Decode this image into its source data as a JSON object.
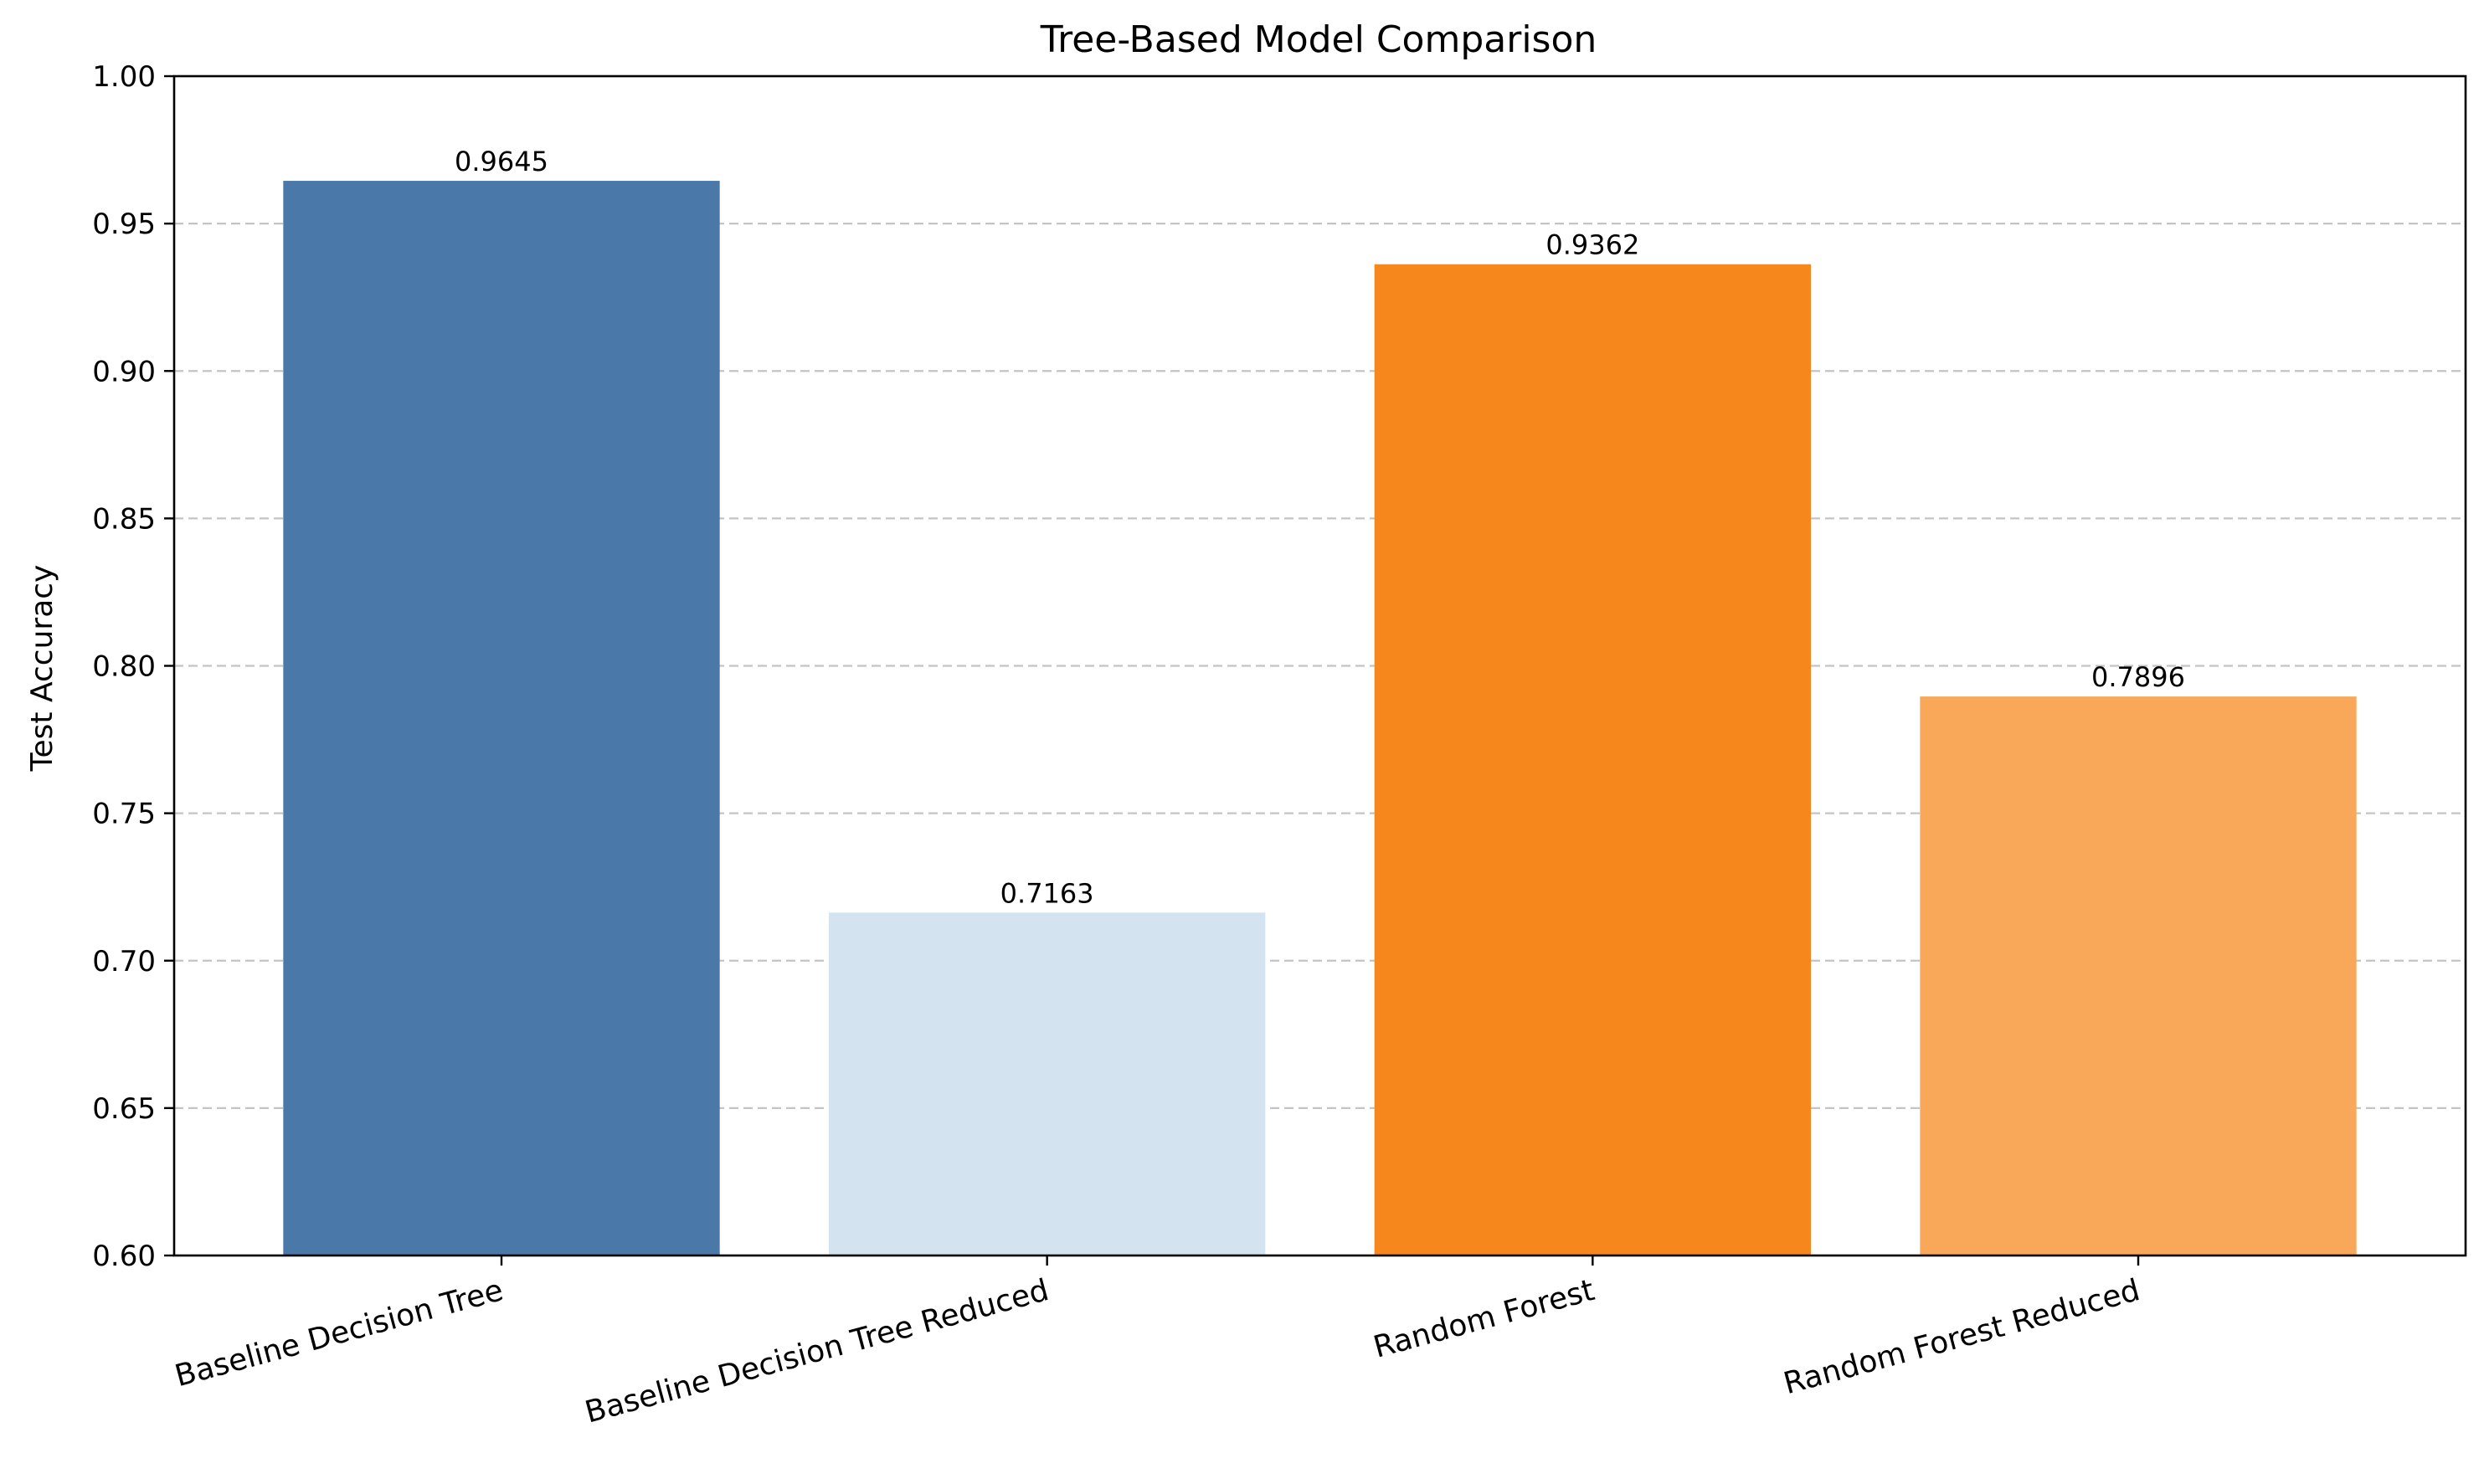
{
  "chart_data": {
    "type": "bar",
    "title": "Tree-Based Model Comparison",
    "xlabel": "",
    "ylabel": "Test Accuracy",
    "ylim": [
      0.6,
      1.0
    ],
    "yticks": [
      0.6,
      0.65,
      0.7,
      0.75,
      0.8,
      0.85,
      0.9,
      0.95,
      1.0
    ],
    "ytick_labels": [
      "0.60",
      "0.65",
      "0.70",
      "0.75",
      "0.80",
      "0.85",
      "0.90",
      "0.95",
      "1.00"
    ],
    "grid": {
      "axis": "y",
      "style": "dashed"
    },
    "categories": [
      "Baseline Decision Tree",
      "Baseline Decision Tree Reduced",
      "Random Forest",
      "Random Forest Reduced"
    ],
    "values": [
      0.9645,
      0.7163,
      0.9362,
      0.7896
    ],
    "value_labels": [
      "0.9645",
      "0.7163",
      "0.9362",
      "0.7896"
    ],
    "colors": [
      "#4a78a8",
      "#d3e4f0",
      "#f5871c",
      "#f8a858"
    ]
  }
}
